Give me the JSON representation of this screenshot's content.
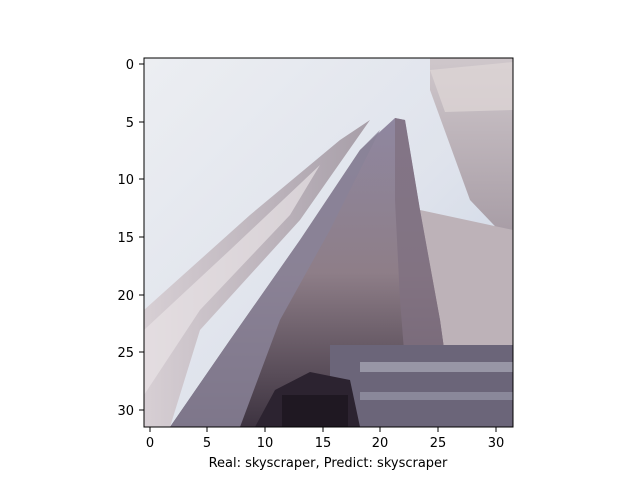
{
  "figure": {
    "xlabel": "Real: skyscraper, Predict: skyscraper",
    "image_pixel_grid": [
      32,
      32
    ]
  },
  "axes": {
    "x_ticks": [
      "0",
      "5",
      "10",
      "15",
      "20",
      "25",
      "30"
    ],
    "y_ticks": [
      "0",
      "5",
      "10",
      "15",
      "20",
      "25",
      "30"
    ]
  },
  "image": {
    "subject": "skyscraper",
    "palette": {
      "sky_light": "#e9eaf0",
      "sky_blue": "#bccbe0",
      "facade_light": "#c8c0c6",
      "facade_mid": "#9c8e98",
      "facade_shadow": "#6f6678",
      "facade_dark": "#3a2f3a",
      "right_building": "#b9afb5"
    }
  }
}
